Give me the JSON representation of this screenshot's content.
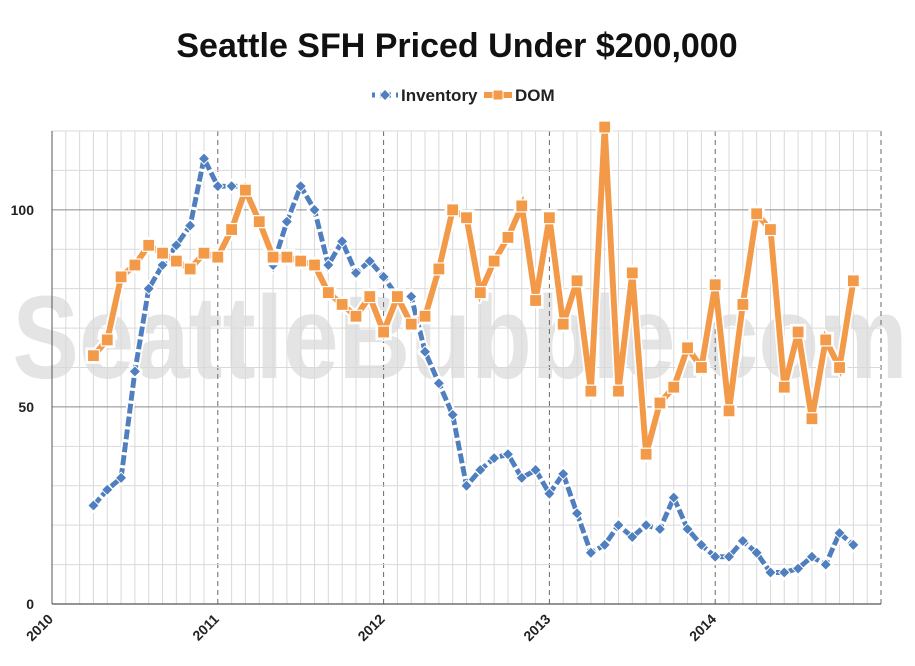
{
  "watermark": "SeattleBubble.com",
  "chart_data": {
    "type": "line",
    "title": "Seattle SFH Priced Under $200,000",
    "xlabel": "",
    "ylabel": "",
    "x_range": [
      "2010-01",
      "2015-01"
    ],
    "ylim": [
      0,
      120
    ],
    "y_ticks": [
      0,
      50,
      100
    ],
    "x_ticks": [
      "2010",
      "2011",
      "2012",
      "2013",
      "2014"
    ],
    "legend_position": "top-center",
    "grid": true,
    "categories": [
      "2010-04",
      "2010-05",
      "2010-06",
      "2010-07",
      "2010-08",
      "2010-09",
      "2010-10",
      "2010-11",
      "2010-12",
      "2011-01",
      "2011-02",
      "2011-03",
      "2011-04",
      "2011-05",
      "2011-06",
      "2011-07",
      "2011-08",
      "2011-09",
      "2011-10",
      "2011-11",
      "2011-12",
      "2012-01",
      "2012-02",
      "2012-03",
      "2012-04",
      "2012-05",
      "2012-06",
      "2012-07",
      "2012-08",
      "2012-09",
      "2012-10",
      "2012-11",
      "2012-12",
      "2013-01",
      "2013-02",
      "2013-03",
      "2013-04",
      "2013-05",
      "2013-06",
      "2013-07",
      "2013-08",
      "2013-09",
      "2013-10",
      "2013-11",
      "2013-12",
      "2014-01",
      "2014-02",
      "2014-03",
      "2014-04",
      "2014-05",
      "2014-06",
      "2014-07",
      "2014-08",
      "2014-09",
      "2014-10",
      "2014-11"
    ],
    "series": [
      {
        "name": "Inventory",
        "color": "#4f7fbf",
        "marker": "diamond",
        "values": [
          25,
          29,
          32,
          59,
          80,
          86,
          91,
          96,
          113,
          106,
          106,
          106,
          96,
          86,
          97,
          106,
          100,
          86,
          92,
          84,
          87,
          83,
          78,
          78,
          64,
          56,
          48,
          30,
          34,
          37,
          38,
          32,
          34,
          28,
          33,
          23,
          13,
          15,
          20,
          17,
          20,
          19,
          27,
          19,
          15,
          12,
          12,
          16,
          13,
          8,
          8,
          9,
          12,
          10,
          18,
          15
        ]
      },
      {
        "name": "DOM",
        "color": "#f39a49",
        "marker": "square",
        "values": [
          63,
          67,
          83,
          86,
          91,
          89,
          87,
          85,
          89,
          88,
          95,
          105,
          97,
          88,
          88,
          87,
          86,
          79,
          76,
          73,
          78,
          69,
          78,
          71,
          73,
          85,
          100,
          98,
          79,
          87,
          93,
          101,
          77,
          98,
          71,
          82,
          54,
          121,
          54,
          84,
          38,
          51,
          55,
          65,
          60,
          81,
          49,
          76,
          99,
          95,
          55,
          69,
          47,
          67,
          60,
          82
        ]
      }
    ]
  }
}
